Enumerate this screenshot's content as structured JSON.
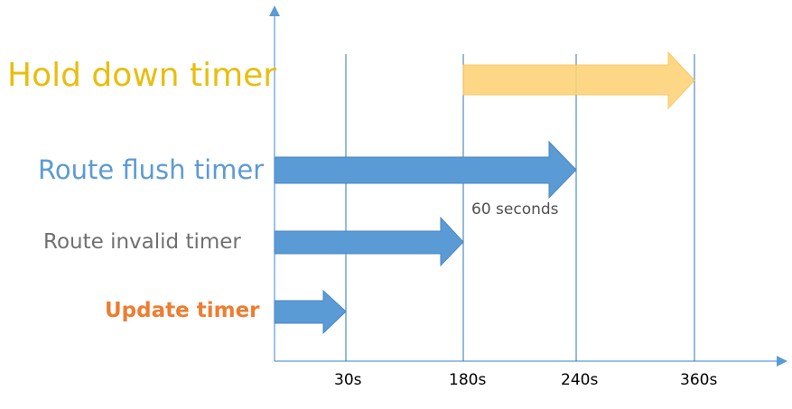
{
  "timers": [
    {
      "label": "Hold down timer",
      "color": "#e8be0e",
      "start": "180s",
      "end": "360s",
      "arrow_color": "#fdd37a"
    },
    {
      "label": "Route flush timer",
      "color": "#5b9bd5",
      "start": "0s",
      "end": "240s",
      "arrow_color": "#5b9bd5"
    },
    {
      "label": "Route invalid timer",
      "color": "#707070",
      "start": "0s",
      "end": "180s",
      "arrow_color": "#5b9bd5"
    },
    {
      "label": "Update timer",
      "color": "#ed7d31",
      "start": "0s",
      "end": "30s",
      "arrow_color": "#5b9bd5"
    }
  ],
  "x_ticks": [
    "30s",
    "180s",
    "240s",
    "360s"
  ],
  "annotation": "60 seconds",
  "axis_color": "#5b9bd5",
  "gridline_color": "#2e75b6"
}
